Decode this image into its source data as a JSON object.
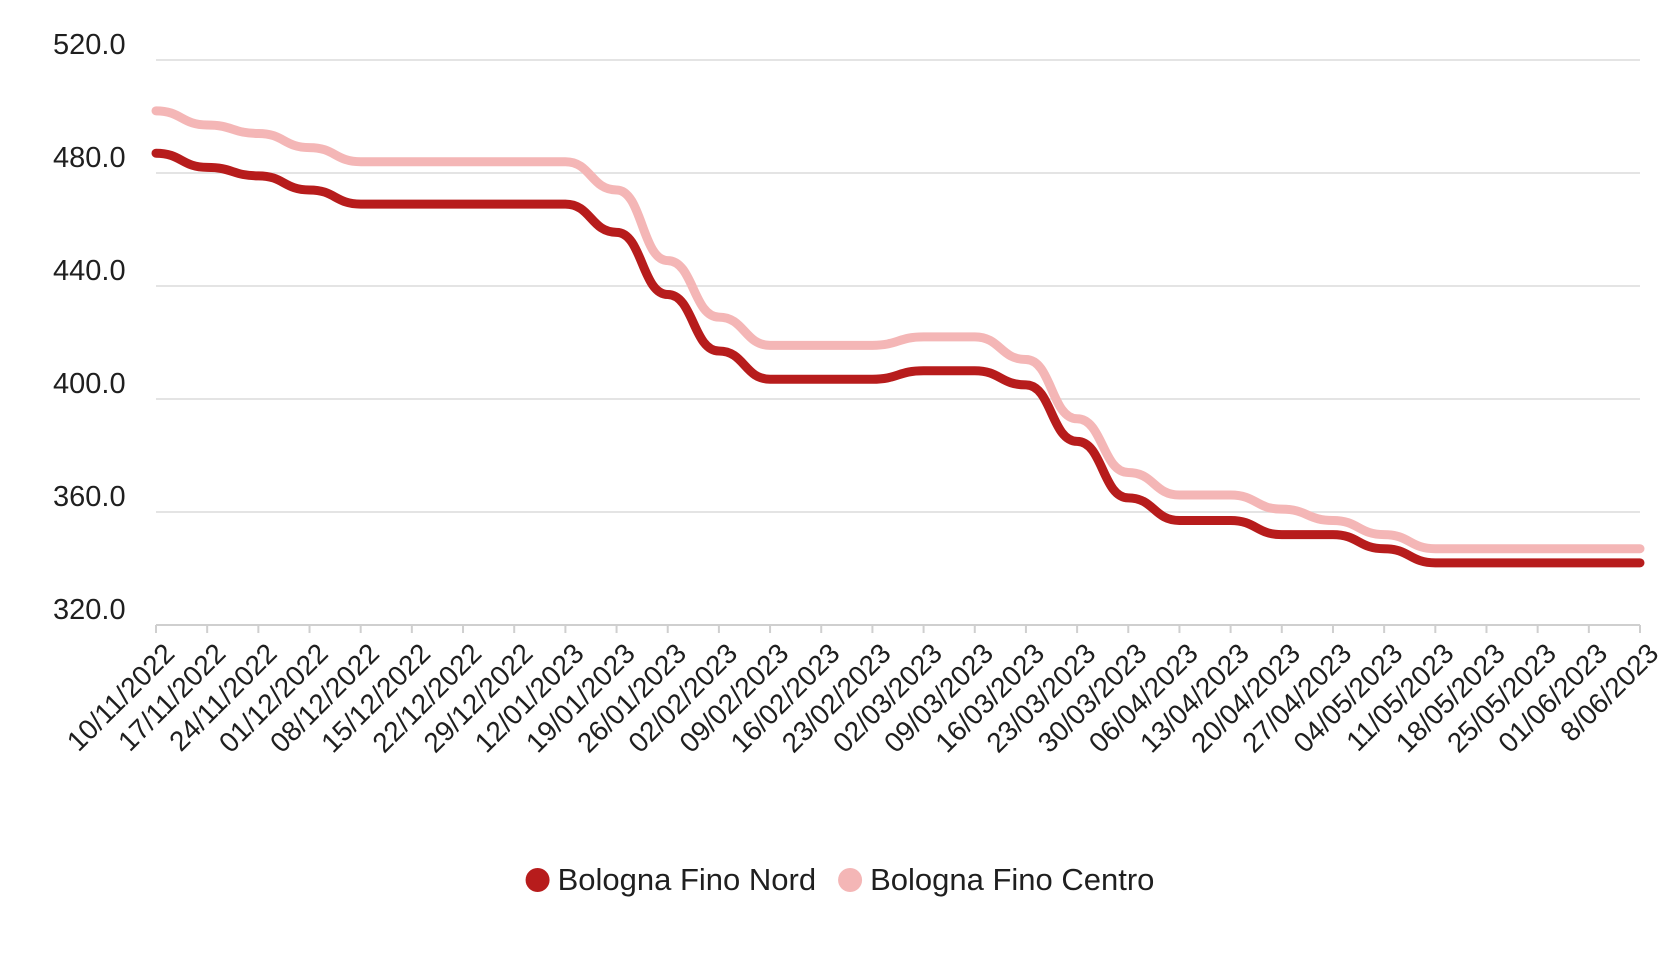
{
  "chart_data": {
    "type": "line",
    "title": "",
    "xlabel": "",
    "ylabel": "",
    "ylim": [
      320,
      520
    ],
    "y_ticks": [
      "320.0",
      "360.0",
      "400.0",
      "440.0",
      "480.0",
      "520.0"
    ],
    "grid": true,
    "legend_position": "bottom-center",
    "categories": [
      "10/11/2022",
      "17/11/2022",
      "24/11/2022",
      "01/12/2022",
      "08/12/2022",
      "15/12/2022",
      "22/12/2022",
      "29/12/2022",
      "12/01/2023",
      "19/01/2023",
      "26/01/2023",
      "02/02/2023",
      "09/02/2023",
      "16/02/2023",
      "23/02/2023",
      "02/03/2023",
      "09/03/2023",
      "16/03/2023",
      "23/03/2023",
      "30/03/2023",
      "06/04/2023",
      "13/04/2023",
      "20/04/2023",
      "27/04/2023",
      "04/05/2023",
      "11/05/2023",
      "18/05/2023",
      "25/05/2023",
      "01/06/2023",
      "8/06/2023"
    ],
    "series": [
      {
        "name": "Bologna Fino Nord",
        "color": "#b71c1c",
        "values": [
          487,
          482,
          479,
          474,
          469,
          469,
          469,
          469,
          469,
          459,
          437,
          417,
          407,
          407,
          407,
          410,
          410,
          405,
          385,
          365,
          357,
          357,
          352,
          352,
          347,
          342,
          342,
          342,
          342,
          342
        ]
      },
      {
        "name": "Bologna Fino Centro",
        "color": "#f4b6b6",
        "values": [
          502,
          497,
          494,
          489,
          484,
          484,
          484,
          484,
          484,
          474,
          449,
          429,
          419,
          419,
          419,
          422,
          422,
          414,
          393,
          374,
          366,
          366,
          361,
          357,
          352,
          347,
          347,
          347,
          347,
          347
        ]
      }
    ]
  }
}
